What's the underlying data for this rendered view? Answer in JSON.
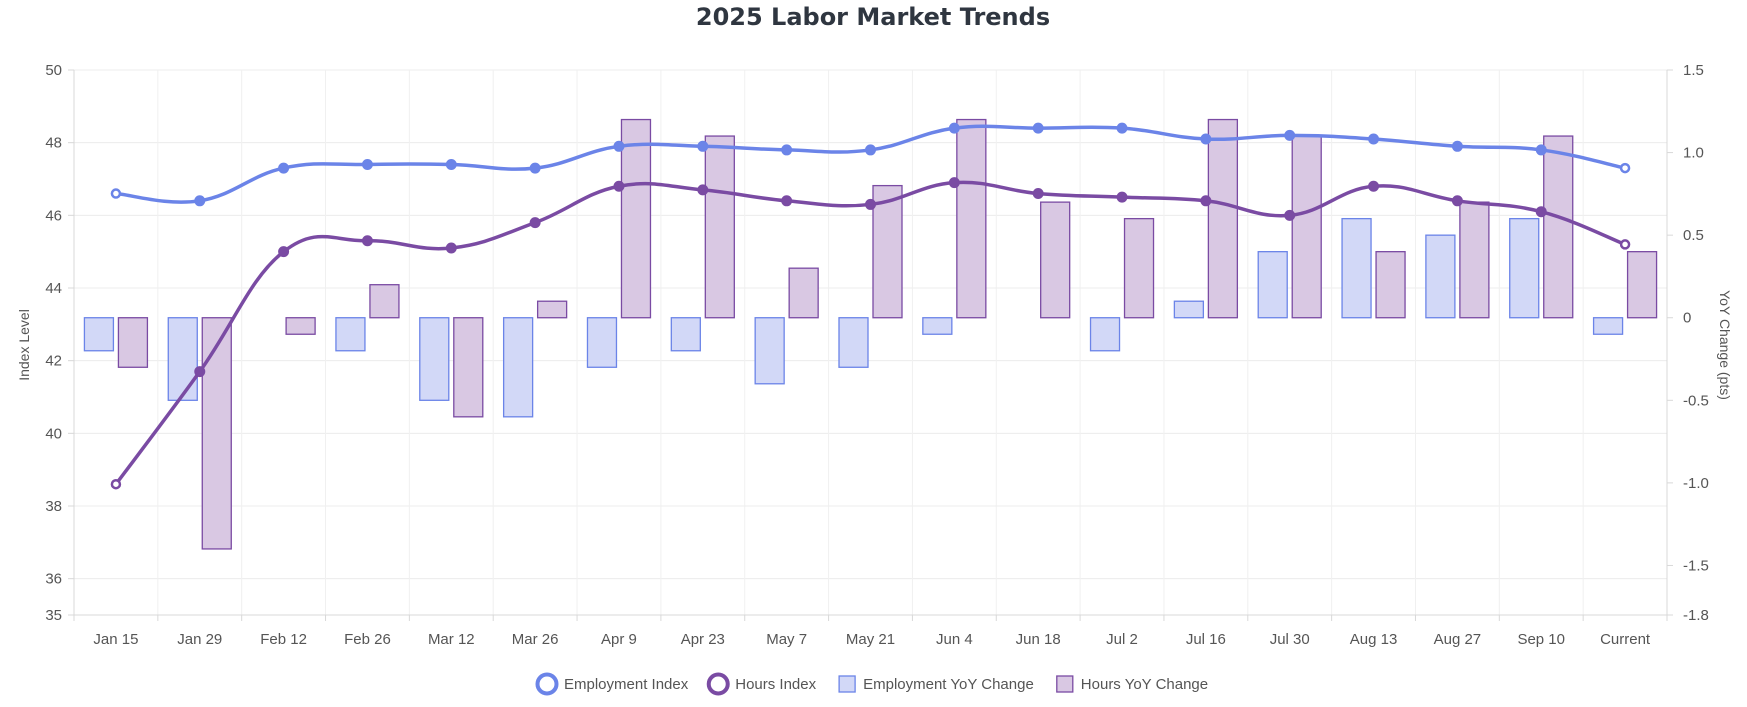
{
  "chart_data": {
    "type": "bar",
    "title": "2025 Labor Market Trends",
    "categories": [
      "Jan 15",
      "Jan 29",
      "Feb 12",
      "Feb 26",
      "Mar 12",
      "Mar 26",
      "Apr 9",
      "Apr 23",
      "May 7",
      "May 21",
      "Jun 4",
      "Jun 18",
      "Jul 2",
      "Jul 16",
      "Jul 30",
      "Aug 13",
      "Aug 27",
      "Sep 10",
      "Current"
    ],
    "y_left": {
      "label": "Index Level",
      "ylim": [
        35,
        50
      ],
      "ticks": [
        "35",
        "36",
        "38",
        "40",
        "42",
        "44",
        "46",
        "48",
        "50"
      ]
    },
    "y_right": {
      "label": "YoY Change (pts)",
      "ylim": [
        -1.8,
        1.5
      ],
      "ticks": [
        "-1.8",
        "-1.5",
        "-1.0",
        "-0.5",
        "0",
        "0.5",
        "1.0",
        "1.5"
      ]
    },
    "grid": true,
    "legend_position": "bottom",
    "series": [
      {
        "name": "Employment Index",
        "kind": "line",
        "axis": "left",
        "color": "#6b84e8",
        "values": [
          46.6,
          46.4,
          47.3,
          47.4,
          47.4,
          47.3,
          47.9,
          47.9,
          47.8,
          47.8,
          48.4,
          48.4,
          48.4,
          48.1,
          48.2,
          48.1,
          47.9,
          47.8,
          47.3
        ]
      },
      {
        "name": "Hours Index",
        "kind": "line",
        "axis": "left",
        "color": "#7a4ba3",
        "values": [
          38.6,
          41.7,
          45.0,
          45.3,
          45.1,
          45.8,
          46.8,
          46.7,
          46.4,
          46.3,
          46.9,
          46.6,
          46.5,
          46.4,
          46.0,
          46.8,
          46.4,
          46.1,
          45.2
        ]
      },
      {
        "name": "Employment YoY Change",
        "kind": "bar",
        "axis": "right",
        "color": "#d2d8f7",
        "border": "#6b84e8",
        "values": [
          -0.2,
          -0.5,
          0.0,
          -0.2,
          -0.5,
          -0.6,
          -0.3,
          -0.2,
          -0.4,
          -0.3,
          -0.1,
          0.0,
          -0.2,
          0.1,
          0.4,
          0.6,
          0.5,
          0.6,
          -0.1
        ]
      },
      {
        "name": "Hours YoY Change",
        "kind": "bar",
        "axis": "right",
        "color": "#d9c8e3",
        "border": "#7a4ba3",
        "values": [
          -0.3,
          -1.4,
          -0.1,
          0.2,
          -0.6,
          0.1,
          1.2,
          1.1,
          0.3,
          0.8,
          1.2,
          0.7,
          0.6,
          1.2,
          1.1,
          0.4,
          0.7,
          1.1,
          0.4
        ]
      }
    ]
  }
}
